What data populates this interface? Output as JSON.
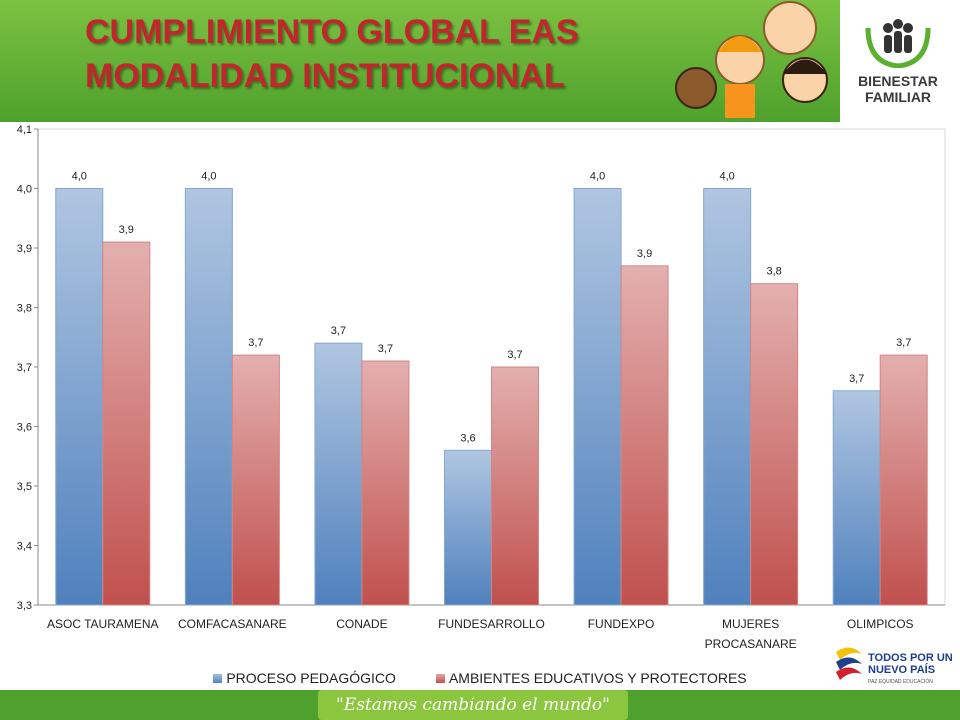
{
  "header": {
    "logo_line1": "BIENESTAR",
    "logo_line2": "FAMILIAR"
  },
  "footer": {
    "slogan": "\"Estamos cambiando el mundo\"",
    "brand": "TODOS POR UN NUEVO PAÍS",
    "brand_sub": "PAZ  EQUIDAD  EDUCACIÓN"
  },
  "chart_data": {
    "type": "bar",
    "title": "CUMPLIMIENTO GLOBAL EAS MODALIDAD INSTITUCIONAL",
    "categories": [
      "ASOC TAURAMENA",
      "COMFACASANARE",
      "CONADE",
      "FUNDESARROLLO",
      "FUNDEXPO",
      "MUJERES PROCASANARE",
      "OLIMPICOS"
    ],
    "series": [
      {
        "name": "PROCESO PEDAGÓGICO",
        "color": "#4f81bd",
        "values": [
          4.0,
          4.0,
          3.74,
          3.56,
          4.0,
          4.0,
          3.66
        ],
        "value_labels": [
          "4,0",
          "4,0",
          "3,7",
          "3,6",
          "4,0",
          "4,0",
          "3,7"
        ]
      },
      {
        "name": "AMBIENTES EDUCATIVOS Y PROTECTORES",
        "color": "#c0504d",
        "values": [
          3.91,
          3.72,
          3.71,
          3.7,
          3.87,
          3.84,
          3.72
        ],
        "value_labels": [
          "3,9",
          "3,7",
          "3,7",
          "3,7",
          "3,9",
          "3,8",
          "3,7"
        ]
      }
    ],
    "ylim": [
      3.3,
      4.1
    ],
    "yticks": [
      {
        "value": 3.3,
        "label": "3,3"
      },
      {
        "value": 3.4,
        "label": "3,4"
      },
      {
        "value": 3.5,
        "label": "3,5"
      },
      {
        "value": 3.6,
        "label": "3,6"
      },
      {
        "value": 3.7,
        "label": "3,7"
      },
      {
        "value": 3.8,
        "label": "3,8"
      },
      {
        "value": 3.9,
        "label": "3,9"
      },
      {
        "value": 4.0,
        "label": "4,0"
      },
      {
        "value": 4.1,
        "label": "4,1"
      }
    ],
    "grid": false,
    "legend": "bottom"
  }
}
